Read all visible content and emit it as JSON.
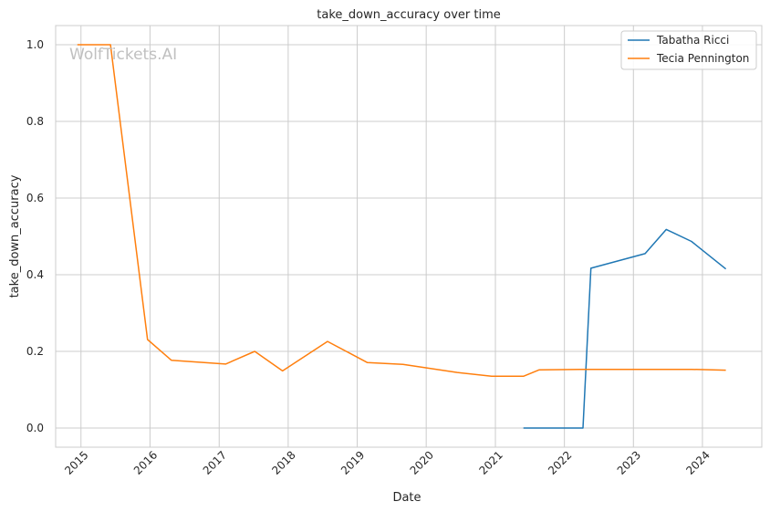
{
  "chart_data": {
    "type": "line",
    "title": "take_down_accuracy over time",
    "xlabel": "Date",
    "ylabel": "take_down_accuracy",
    "watermark": "WolfTickets.AI",
    "x_ticks": [
      "2015",
      "2016",
      "2017",
      "2018",
      "2019",
      "2020",
      "2021",
      "2022",
      "2023",
      "2024"
    ],
    "y_ticks": [
      "0.0",
      "0.2",
      "0.4",
      "0.6",
      "0.8",
      "1.0"
    ],
    "xlim": [
      "2014-08-20",
      "2024-11-10"
    ],
    "ylim": [
      -0.05,
      1.05
    ],
    "grid": true,
    "legend_position": "top-right",
    "series": [
      {
        "name": "Tabatha Ricci",
        "color": "#1f77b4",
        "points": [
          [
            "2021-05-29",
            0.0
          ],
          [
            "2022-04-09",
            0.0
          ],
          [
            "2022-05-21",
            0.417
          ],
          [
            "2023-03-04",
            0.455
          ],
          [
            "2023-06-24",
            0.518
          ],
          [
            "2023-11-04",
            0.487
          ],
          [
            "2024-05-04",
            0.415
          ]
        ]
      },
      {
        "name": "Tecia Pennington",
        "color": "#ff7f0e",
        "points": [
          [
            "2014-12-13",
            1.0
          ],
          [
            "2015-06-06",
            1.0
          ],
          [
            "2015-12-19",
            0.231
          ],
          [
            "2016-04-23",
            0.177
          ],
          [
            "2017-02-04",
            0.167
          ],
          [
            "2017-07-08",
            0.2
          ],
          [
            "2017-12-02",
            0.149
          ],
          [
            "2018-07-28",
            0.226
          ],
          [
            "2019-02-23",
            0.171
          ],
          [
            "2019-08-31",
            0.166
          ],
          [
            "2020-06-13",
            0.145
          ],
          [
            "2020-12-12",
            0.135
          ],
          [
            "2021-05-29",
            0.135
          ],
          [
            "2021-08-21",
            0.152
          ],
          [
            "2022-04-09",
            0.153
          ],
          [
            "2023-11-04",
            0.153
          ],
          [
            "2024-05-04",
            0.151
          ]
        ]
      }
    ]
  }
}
